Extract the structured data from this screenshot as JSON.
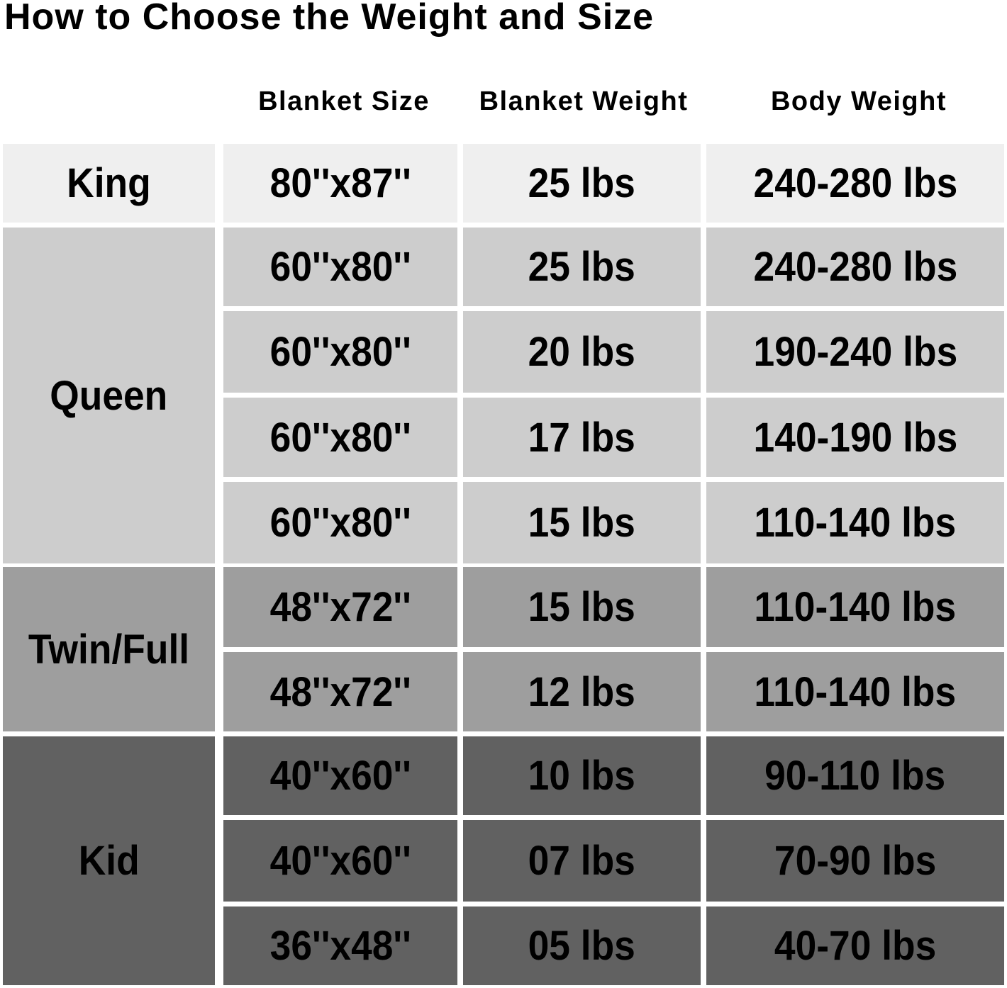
{
  "title": "How to Choose the Weight and Size",
  "headers": [
    "Blanket Size",
    "Blanket Weight",
    "Body Weight"
  ],
  "groups": [
    {
      "label": "King",
      "color": "#efefef",
      "rows": [
        {
          "size": "80''x87''",
          "blanket_weight": "25 lbs",
          "body_weight": "240-280 lbs"
        }
      ]
    },
    {
      "label": "Queen",
      "color": "#cdcdcd",
      "rows": [
        {
          "size": "60''x80''",
          "blanket_weight": "25 lbs",
          "body_weight": "240-280 lbs"
        },
        {
          "size": "60''x80''",
          "blanket_weight": "20 lbs",
          "body_weight": "190-240 lbs"
        },
        {
          "size": "60''x80''",
          "blanket_weight": "17 lbs",
          "body_weight": "140-190 lbs"
        },
        {
          "size": "60''x80''",
          "blanket_weight": "15 lbs",
          "body_weight": "110-140 lbs"
        }
      ]
    },
    {
      "label": "Twin/Full",
      "color": "#9e9e9e",
      "rows": [
        {
          "size": "48''x72''",
          "blanket_weight": "15 lbs",
          "body_weight": "110-140 lbs"
        },
        {
          "size": "48''x72''",
          "blanket_weight": "12 lbs",
          "body_weight": "110-140 lbs"
        }
      ]
    },
    {
      "label": "Kid",
      "color": "#616161",
      "rows": [
        {
          "size": "40''x60''",
          "blanket_weight": "10 lbs",
          "body_weight": "90-110 lbs"
        },
        {
          "size": "40''x60''",
          "blanket_weight": "07 lbs",
          "body_weight": "70-90 lbs"
        },
        {
          "size": "36''x48''",
          "blanket_weight": "05 lbs",
          "body_weight": "40-70 lbs"
        }
      ]
    }
  ]
}
